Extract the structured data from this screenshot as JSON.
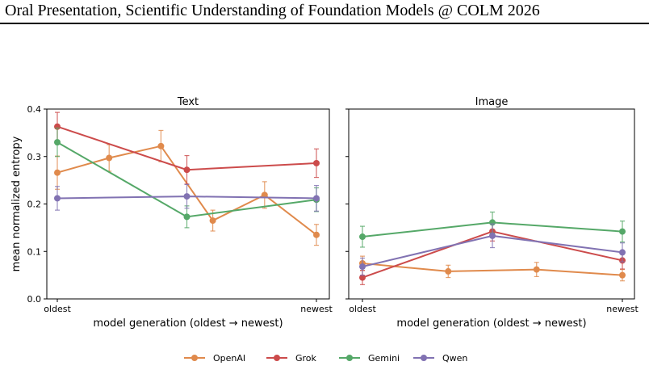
{
  "header": {
    "title": "Oral Presentation, Scientific Understanding of Foundation Models @ COLM 2026"
  },
  "colors": {
    "OpenAI": "#e08a4c",
    "Grok": "#cc4b4b",
    "Gemini": "#55a868",
    "Qwen": "#8172b2"
  },
  "chart_data": [
    {
      "type": "line",
      "title": "Text",
      "xlabel": "model generation (oldest → newest)",
      "ylabel": "mean normalized entropy",
      "ylim": [
        0.0,
        0.4
      ],
      "yticks": [
        "0.0",
        "0.1",
        "0.2",
        "0.3",
        "0.4"
      ],
      "xticks": [
        "oldest",
        "newest"
      ],
      "grid": false,
      "series": [
        {
          "name": "OpenAI",
          "x": [
            0,
            0.2,
            0.4,
            0.6,
            0.8,
            1.0
          ],
          "y": [
            0.266,
            0.297,
            0.322,
            0.165,
            0.219,
            0.135
          ],
          "err": [
            0.035,
            0.028,
            0.033,
            0.022,
            0.028,
            0.022
          ]
        },
        {
          "name": "Grok",
          "x": [
            0,
            0.5,
            1.0
          ],
          "y": [
            0.363,
            0.272,
            0.286
          ],
          "err": [
            0.03,
            0.03,
            0.03
          ]
        },
        {
          "name": "Gemini",
          "x": [
            0,
            0.5,
            1.0
          ],
          "y": [
            0.33,
            0.173,
            0.209
          ],
          "err": [
            0.03,
            0.023,
            0.025
          ]
        },
        {
          "name": "Qwen",
          "x": [
            0,
            0.5,
            1.0
          ],
          "y": [
            0.212,
            0.216,
            0.212
          ],
          "err": [
            0.025,
            0.025,
            0.027
          ]
        }
      ]
    },
    {
      "type": "line",
      "title": "Image",
      "xlabel": "model generation (oldest → newest)",
      "ylabel": "",
      "ylim": [
        0.0,
        0.4
      ],
      "xticks": [
        "oldest",
        "newest"
      ],
      "grid": false,
      "series": [
        {
          "name": "OpenAI",
          "x": [
            0,
            0.33,
            0.67,
            1.0
          ],
          "y": [
            0.075,
            0.058,
            0.062,
            0.05
          ],
          "err": [
            0.015,
            0.013,
            0.015,
            0.012
          ]
        },
        {
          "name": "Grok",
          "x": [
            0,
            0.5,
            1.0
          ],
          "y": [
            0.045,
            0.142,
            0.081
          ],
          "err": [
            0.015,
            0.02,
            0.018
          ]
        },
        {
          "name": "Gemini",
          "x": [
            0,
            0.5,
            1.0
          ],
          "y": [
            0.131,
            0.161,
            0.142
          ],
          "err": [
            0.022,
            0.022,
            0.022
          ]
        },
        {
          "name": "Qwen",
          "x": [
            0,
            0.5,
            1.0
          ],
          "y": [
            0.068,
            0.133,
            0.098
          ],
          "err": [
            0.018,
            0.025,
            0.02
          ]
        }
      ]
    }
  ],
  "legend": [
    "OpenAI",
    "Grok",
    "Gemini",
    "Qwen"
  ]
}
